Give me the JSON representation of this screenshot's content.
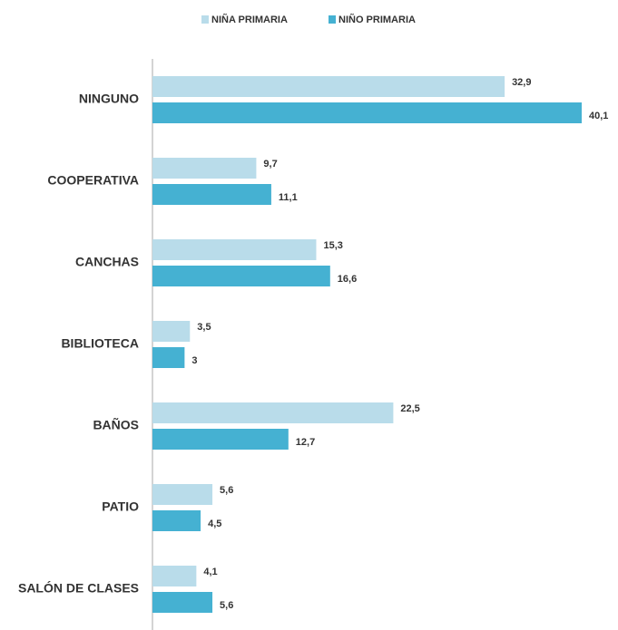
{
  "chart_data": {
    "type": "bar",
    "orientation": "horizontal",
    "categories": [
      "NINGUNO",
      "COOPERATIVA",
      "CANCHAS",
      "BIBLIOTECA",
      "BAÑOS",
      "PATIO",
      "SALÓN DE CLASES"
    ],
    "series": [
      {
        "name": "NIÑA PRIMARIA",
        "color": "#b9dcea",
        "values": [
          32.9,
          9.7,
          15.3,
          3.5,
          22.5,
          5.6,
          4.1
        ],
        "value_labels": [
          "32,9",
          "9,7",
          "15,3",
          "3,5",
          "22,5",
          "5,6",
          "4,1"
        ]
      },
      {
        "name": "NIÑO PRIMARIA",
        "color": "#45b1d2",
        "values": [
          40.1,
          11.1,
          16.6,
          3,
          12.7,
          4.5,
          5.6
        ],
        "value_labels": [
          "40,1",
          "11,1",
          "16,6",
          "3",
          "12,7",
          "4,5",
          "5,6"
        ]
      }
    ],
    "legend": "top"
  }
}
